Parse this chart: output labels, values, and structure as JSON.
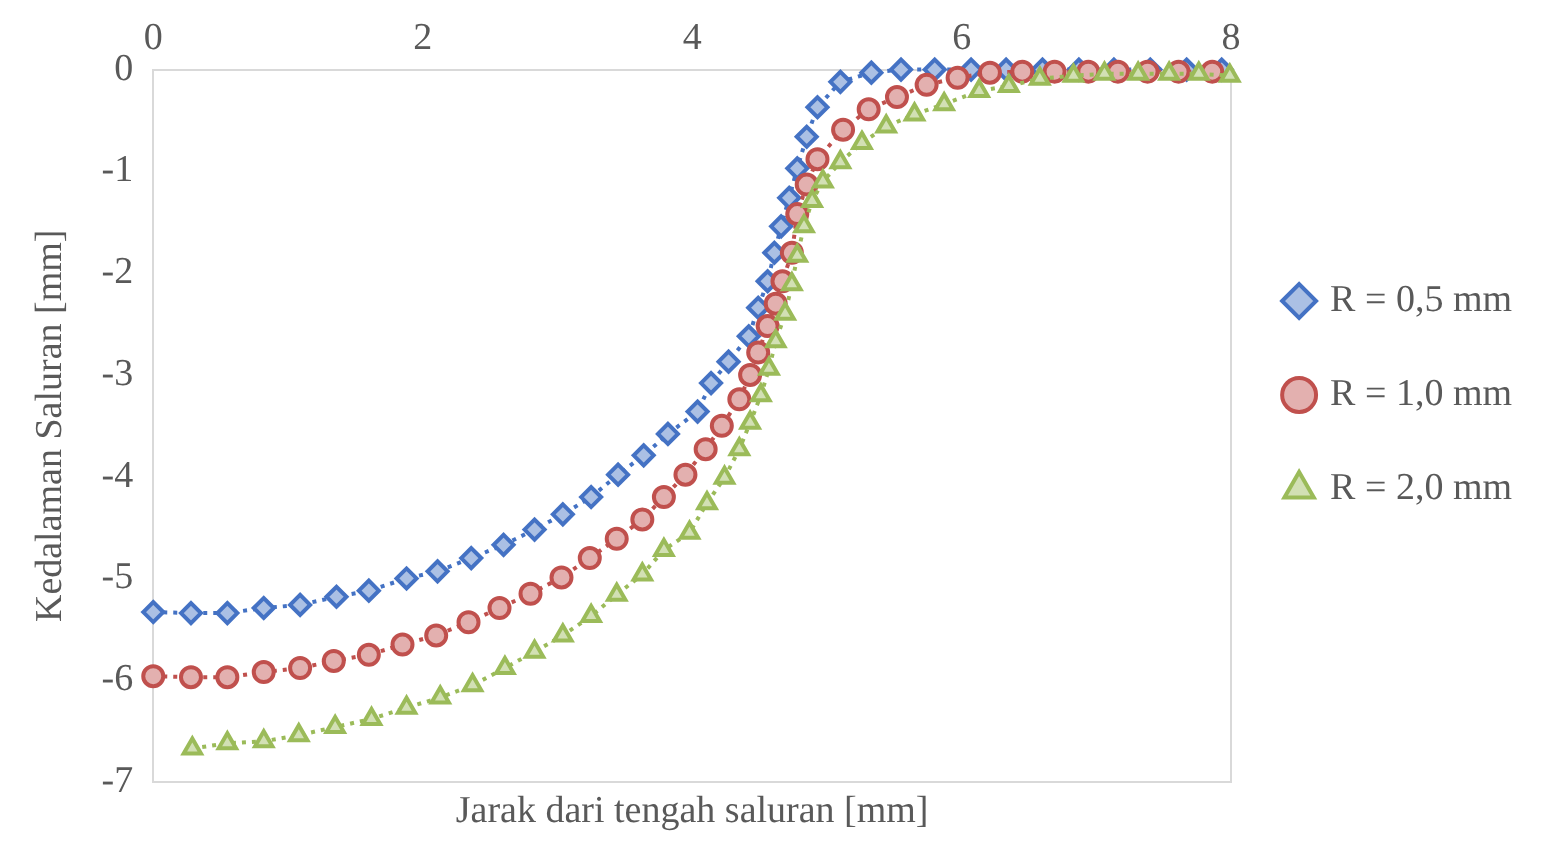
{
  "chart_data": {
    "type": "line",
    "xlabel": "Jarak dari tengah saluran [mm]",
    "ylabel": "Kedalaman Saluran [mm]",
    "xlim": [
      0,
      8
    ],
    "xticks": [
      0,
      2,
      4,
      6,
      8
    ],
    "ylim": [
      -7,
      0
    ],
    "yticks": [
      -7,
      -6,
      -5,
      -4,
      -3,
      -2,
      -1,
      0
    ],
    "grid": false,
    "legend": "right",
    "line_style": "dotted",
    "series": [
      {
        "name": "R = 0,5 mm",
        "color": "#4472c4",
        "marker": "diamond",
        "x": [
          0,
          0.28,
          0.55,
          0.82,
          1.09,
          1.36,
          1.6,
          1.88,
          2.11,
          2.36,
          2.6,
          2.83,
          3.04,
          3.25,
          3.45,
          3.64,
          3.82,
          4.04,
          4.14,
          4.27,
          4.42,
          4.49,
          4.56,
          4.61,
          4.66,
          4.72,
          4.78,
          4.85,
          4.93,
          5.1,
          5.33,
          5.55,
          5.8,
          6.07,
          6.33,
          6.6,
          6.87,
          7.13,
          7.4,
          7.67,
          7.93
        ],
        "values": [
          -5.33,
          -5.34,
          -5.34,
          -5.29,
          -5.26,
          -5.18,
          -5.12,
          -5.0,
          -4.93,
          -4.8,
          -4.67,
          -4.52,
          -4.37,
          -4.2,
          -3.98,
          -3.79,
          -3.58,
          -3.36,
          -3.08,
          -2.87,
          -2.62,
          -2.34,
          -2.08,
          -1.8,
          -1.54,
          -1.26,
          -0.97,
          -0.66,
          -0.37,
          -0.12,
          -0.03,
          0,
          0,
          0,
          0,
          0,
          0,
          0,
          0,
          0,
          0
        ]
      },
      {
        "name": "R = 1,0 mm",
        "color": "#c0504d",
        "marker": "circle",
        "x": [
          0,
          0.28,
          0.55,
          0.82,
          1.09,
          1.34,
          1.6,
          1.85,
          2.1,
          2.34,
          2.57,
          2.8,
          3.03,
          3.24,
          3.44,
          3.63,
          3.79,
          3.95,
          4.1,
          4.22,
          4.35,
          4.43,
          4.49,
          4.56,
          4.62,
          4.67,
          4.74,
          4.78,
          4.85,
          4.93,
          5.12,
          5.31,
          5.52,
          5.74,
          5.97,
          6.21,
          6.45,
          6.69,
          6.94,
          7.16,
          7.38,
          7.61,
          7.86
        ],
        "values": [
          -5.96,
          -5.97,
          -5.97,
          -5.92,
          -5.88,
          -5.81,
          -5.75,
          -5.65,
          -5.56,
          -5.43,
          -5.29,
          -5.15,
          -4.99,
          -4.8,
          -4.61,
          -4.42,
          -4.2,
          -3.98,
          -3.73,
          -3.5,
          -3.24,
          -3.0,
          -2.78,
          -2.52,
          -2.3,
          -2.08,
          -1.8,
          -1.42,
          -1.13,
          -0.88,
          -0.59,
          -0.39,
          -0.27,
          -0.15,
          -0.08,
          -0.03,
          -0.02,
          -0.02,
          -0.02,
          -0.02,
          -0.02,
          -0.02,
          -0.02
        ]
      },
      {
        "name": "R = 2,0 mm",
        "color": "#9bbb59",
        "marker": "triangle",
        "x": [
          0.29,
          0.55,
          0.82,
          1.08,
          1.35,
          1.62,
          1.88,
          2.13,
          2.37,
          2.61,
          2.83,
          3.04,
          3.25,
          3.44,
          3.63,
          3.79,
          3.98,
          4.11,
          4.24,
          4.35,
          4.43,
          4.51,
          4.57,
          4.62,
          4.69,
          4.74,
          4.78,
          4.83,
          4.89,
          4.97,
          5.1,
          5.26,
          5.44,
          5.65,
          5.87,
          6.13,
          6.35,
          6.58,
          6.83,
          7.06,
          7.31,
          7.54,
          7.76,
          7.99
        ],
        "values": [
          -6.67,
          -6.62,
          -6.6,
          -6.54,
          -6.46,
          -6.38,
          -6.27,
          -6.17,
          -6.05,
          -5.88,
          -5.72,
          -5.56,
          -5.37,
          -5.16,
          -4.96,
          -4.72,
          -4.55,
          -4.26,
          -4.01,
          -3.73,
          -3.47,
          -3.2,
          -2.94,
          -2.67,
          -2.4,
          -2.11,
          -1.83,
          -1.54,
          -1.29,
          -1.1,
          -0.91,
          -0.72,
          -0.56,
          -0.44,
          -0.34,
          -0.21,
          -0.16,
          -0.09,
          -0.06,
          -0.04,
          -0.04,
          -0.04,
          -0.04,
          -0.06
        ]
      }
    ]
  }
}
